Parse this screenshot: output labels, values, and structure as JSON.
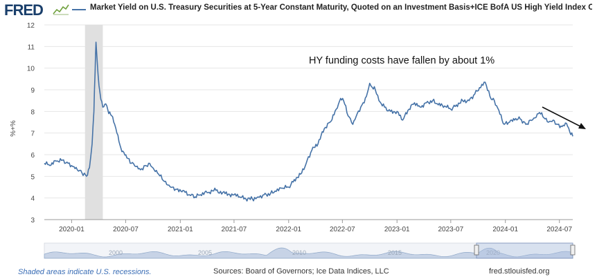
{
  "header": {
    "logo": "FRED",
    "logo_icon": "fred-chart-icon",
    "legend_text": "Market Yield on U.S. Treasury Securities at 5-Year Constant Maturity, Quoted on an Investment Basis+ICE BofA US High Yield Index Option-"
  },
  "footer": {
    "recession_note": "Shaded areas indicate U.S. recessions.",
    "sources": "Sources: Board of Governors; Ice Data Indices, LLC",
    "url": "fred.stlouisfed.org"
  },
  "colors": {
    "series": "#4572a7",
    "recession": "#e0e0e0",
    "grid": "#e6e6e6",
    "arrow": "#111111"
  },
  "chart_data": {
    "type": "line",
    "ylabel": "%+%",
    "ylim": [
      3,
      12
    ],
    "yticks": [
      3,
      4,
      5,
      6,
      7,
      8,
      9,
      10,
      11,
      12
    ],
    "xlim": [
      "2019-10-01",
      "2024-08-15"
    ],
    "xticks": [
      "2020-01",
      "2020-07",
      "2021-01",
      "2021-07",
      "2022-01",
      "2022-07",
      "2023-01",
      "2023-07",
      "2024-01",
      "2024-07"
    ],
    "grid": true,
    "recessions": [
      {
        "start": "2020-02-15",
        "end": "2020-04-15"
      }
    ],
    "annotation": {
      "text": "HY funding costs have fallen by about 1%"
    },
    "navigator": {
      "labels": [
        "2000",
        "2005",
        "2010",
        "2015",
        "2020"
      ]
    },
    "series": [
      {
        "x": [
          "2019-10-01",
          "2019-10-20",
          "2019-11-10",
          "2019-12-01",
          "2019-12-20",
          "2020-01-05",
          "2020-01-20",
          "2020-02-05",
          "2020-02-20",
          "2020-03-01",
          "2020-03-10",
          "2020-03-16",
          "2020-03-20",
          "2020-03-23",
          "2020-03-30",
          "2020-04-05",
          "2020-04-15",
          "2020-04-25",
          "2020-05-05",
          "2020-05-15",
          "2020-05-25",
          "2020-06-05",
          "2020-06-15",
          "2020-06-25",
          "2020-07-05",
          "2020-07-20",
          "2020-08-05",
          "2020-08-20",
          "2020-09-05",
          "2020-09-20",
          "2020-10-05",
          "2020-10-20",
          "2020-11-05",
          "2020-11-20",
          "2020-12-05",
          "2020-12-20",
          "2021-01-10",
          "2021-02-01",
          "2021-02-20",
          "2021-03-10",
          "2021-04-01",
          "2021-05-01",
          "2021-06-01",
          "2021-07-01",
          "2021-07-20",
          "2021-08-10",
          "2021-09-01",
          "2021-09-20",
          "2021-10-10",
          "2021-11-01",
          "2021-11-20",
          "2021-12-10",
          "2022-01-01",
          "2022-01-20",
          "2022-02-10",
          "2022-03-01",
          "2022-03-20",
          "2022-04-10",
          "2022-05-01",
          "2022-05-20",
          "2022-06-10",
          "2022-06-25",
          "2022-07-05",
          "2022-07-20",
          "2022-08-05",
          "2022-08-20",
          "2022-09-05",
          "2022-09-20",
          "2022-10-01",
          "2022-10-10",
          "2022-10-20",
          "2022-11-01",
          "2022-11-20",
          "2022-12-10",
          "2023-01-01",
          "2023-01-20",
          "2023-02-10",
          "2023-03-01",
          "2023-03-20",
          "2023-04-10",
          "2023-05-01",
          "2023-05-20",
          "2023-06-10",
          "2023-07-01",
          "2023-07-20",
          "2023-08-10",
          "2023-09-01",
          "2023-09-20",
          "2023-10-10",
          "2023-10-25",
          "2023-11-10",
          "2023-11-25",
          "2023-12-10",
          "2023-12-28",
          "2024-01-15",
          "2024-02-01",
          "2024-02-20",
          "2024-03-10",
          "2024-03-25",
          "2024-04-10",
          "2024-04-25",
          "2024-05-10",
          "2024-05-25",
          "2024-06-10",
          "2024-06-25",
          "2024-07-10",
          "2024-07-25",
          "2024-08-05",
          "2024-08-15"
        ],
        "y": [
          5.6,
          5.5,
          5.7,
          5.75,
          5.6,
          5.45,
          5.3,
          5.15,
          5.0,
          5.4,
          6.5,
          8.0,
          9.8,
          11.2,
          9.7,
          8.9,
          8.2,
          8.35,
          7.9,
          7.8,
          7.4,
          6.9,
          6.3,
          6.1,
          5.85,
          5.6,
          5.45,
          5.3,
          5.5,
          5.6,
          5.3,
          5.1,
          4.8,
          4.6,
          4.5,
          4.4,
          4.35,
          4.15,
          4.05,
          4.15,
          4.25,
          4.35,
          4.2,
          4.15,
          4.05,
          3.95,
          3.95,
          4.05,
          4.15,
          4.2,
          4.3,
          4.45,
          4.5,
          4.85,
          5.1,
          5.6,
          6.2,
          6.5,
          7.2,
          7.5,
          8.1,
          8.6,
          8.5,
          7.8,
          7.4,
          7.9,
          8.3,
          8.7,
          9.3,
          9.1,
          9.0,
          8.5,
          8.2,
          8.0,
          8.0,
          7.6,
          8.1,
          8.4,
          8.2,
          8.4,
          8.5,
          8.3,
          8.25,
          8.1,
          8.3,
          8.5,
          8.5,
          8.8,
          9.1,
          9.35,
          8.7,
          8.5,
          8.05,
          7.4,
          7.5,
          7.6,
          7.65,
          7.4,
          7.6,
          7.7,
          7.95,
          7.7,
          7.5,
          7.6,
          7.4,
          7.3,
          7.45,
          7.05,
          6.85
        ]
      }
    ]
  }
}
